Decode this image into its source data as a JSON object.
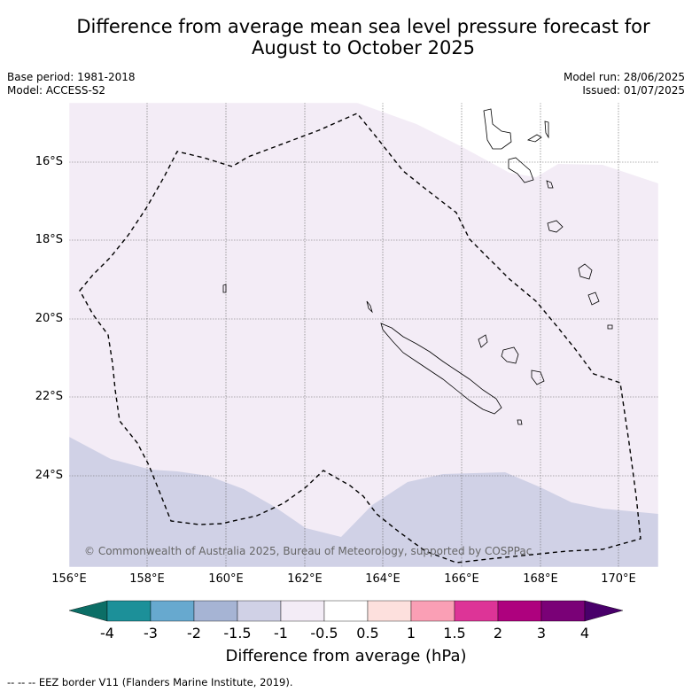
{
  "title_line1": "Difference from average mean sea level pressure forecast for",
  "title_line2": "August to October 2025",
  "base_period": "Base period: 1981-2018",
  "model": "Model: ACCESS-S2",
  "model_run": "Model run: 28/06/2025",
  "issued": "Issued: 01/07/2025",
  "copyright": "© Commonwealth of Australia 2025, Bureau of Meteorology, supported by COSPPac",
  "lat_labels": [
    "16°S",
    "18°S",
    "20°S",
    "22°S",
    "24°S"
  ],
  "lon_labels": [
    "156°E",
    "158°E",
    "160°E",
    "162°E",
    "164°E",
    "166°E",
    "168°E",
    "170°E"
  ],
  "colorbar": {
    "title": "Difference from average (hPa)",
    "ticks": [
      "-4",
      "-3",
      "-2",
      "-1.5",
      "-1",
      "-0.5",
      "0.5",
      "1",
      "1.5",
      "2",
      "3",
      "4"
    ],
    "colors": [
      "#0c6e66",
      "#1c9099",
      "#67a9cf",
      "#a6b4d4",
      "#d0d1e6",
      "#f3ecf6",
      "#ffffff",
      "#fde0dd",
      "#fa9fb5",
      "#dd3497",
      "#ae017e",
      "#7a0177",
      "#49006a"
    ]
  },
  "map_regions": {
    "north_band_value": "-0.5 to -1",
    "south_band_value": "-1 to -1.5"
  },
  "footer": "--  --  -- EEZ border V11 (Flanders Marine Institute, 2019)."
}
